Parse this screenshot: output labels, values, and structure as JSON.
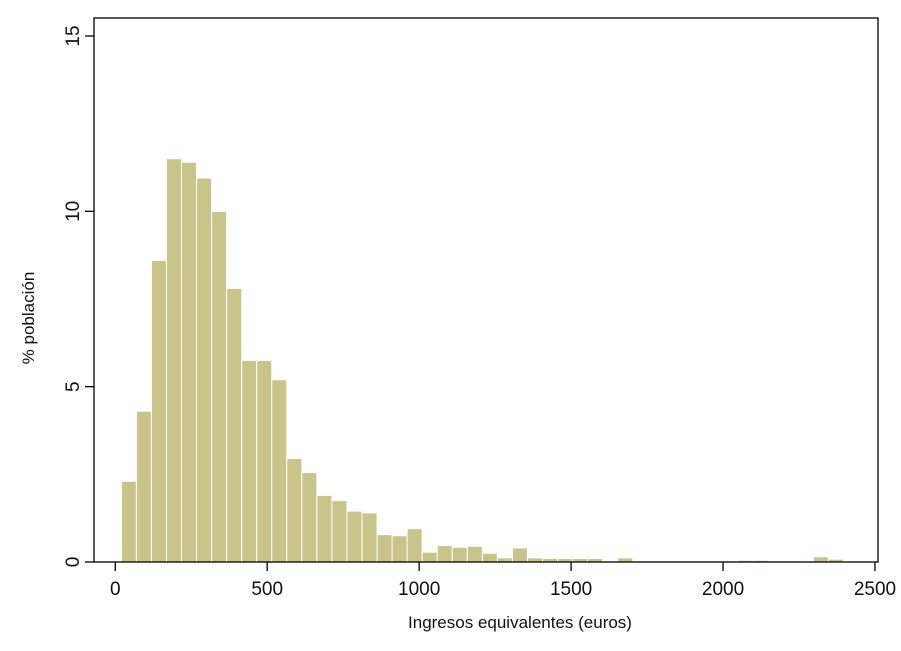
{
  "chart_data": {
    "type": "bar",
    "subtype": "histogram",
    "xlabel": "Ingresos equivalentes (euros)",
    "ylabel": "% población",
    "xlim": [
      -70,
      2510
    ],
    "ylim": [
      0,
      15
    ],
    "xticks": [
      0,
      500,
      1000,
      1500,
      2000,
      2500
    ],
    "yticks": [
      0,
      5,
      10,
      15
    ],
    "bin_width": 49.5,
    "x_start": 20,
    "bar_color": "#c9c48a",
    "bar_edge_color": "#ffffff",
    "values": [
      2.3,
      4.3,
      8.6,
      11.5,
      11.4,
      10.95,
      10.0,
      7.8,
      5.75,
      5.75,
      5.2,
      2.95,
      2.55,
      1.9,
      1.75,
      1.45,
      1.4,
      0.78,
      0.75,
      0.95,
      0.28,
      0.47,
      0.42,
      0.45,
      0.25,
      0.12,
      0.4,
      0.12,
      0.1,
      0.1,
      0.1,
      0.1,
      0.0,
      0.12,
      0.0,
      0.0,
      0.0,
      0.0,
      0.0,
      0.0,
      0.0,
      0.05,
      0.05,
      0.0,
      0.0,
      0.0,
      0.15,
      0.08
    ],
    "grid": false,
    "legend": "none"
  }
}
